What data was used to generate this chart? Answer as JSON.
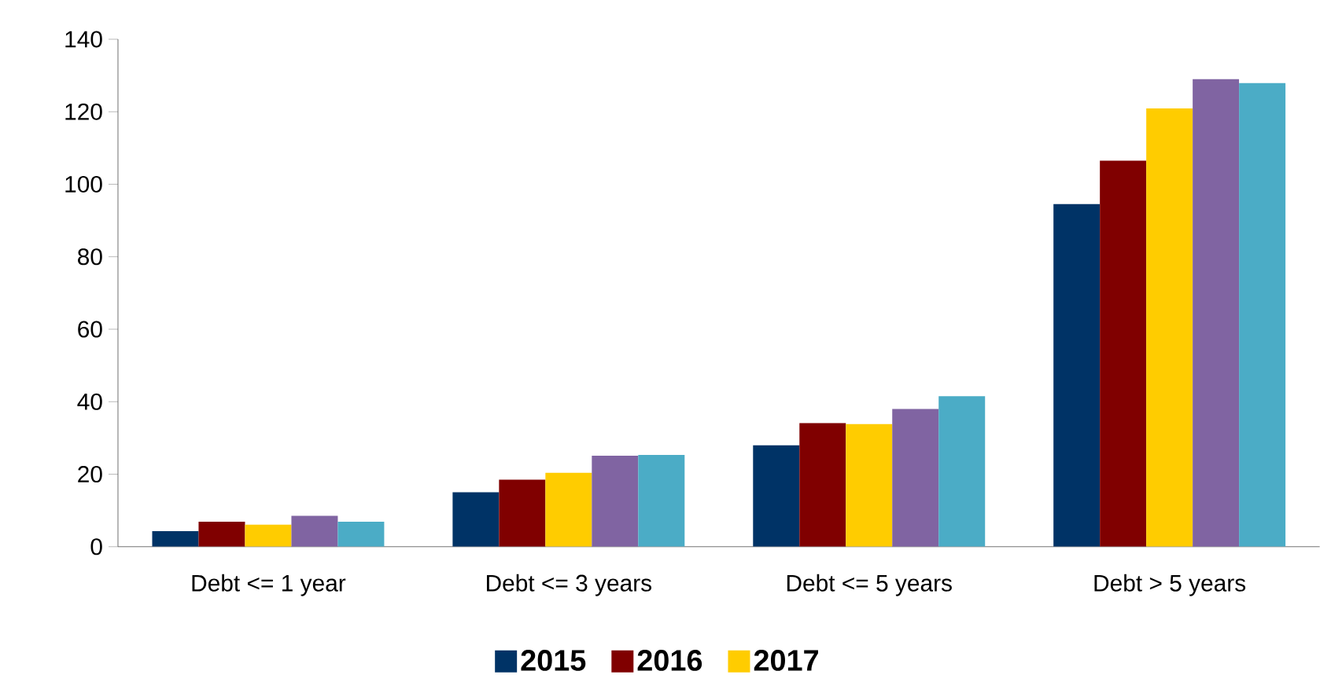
{
  "chart_data": {
    "type": "bar",
    "categories": [
      "Debt <= 1 year",
      "Debt <= 3 years",
      "Debt <= 5 years",
      "Debt > 5 years"
    ],
    "series": [
      {
        "name": "2015",
        "color": "#003366",
        "values": [
          4.3,
          15.0,
          28.0,
          94.5
        ]
      },
      {
        "name": "2016",
        "color": "#800000",
        "values": [
          6.9,
          18.5,
          34.1,
          106.5
        ]
      },
      {
        "name": "2017",
        "color": "#ffcc00",
        "values": [
          6.1,
          20.4,
          33.8,
          120.9
        ]
      },
      {
        "color": "#8064a2",
        "values": [
          8.5,
          25.1,
          38.0,
          129.0
        ]
      },
      {
        "color": "#4bacc6",
        "values": [
          6.9,
          25.3,
          41.5,
          127.9
        ]
      }
    ],
    "ylim": [
      0,
      140
    ],
    "yticks": [
      0,
      20,
      40,
      60,
      80,
      100,
      120,
      140
    ],
    "grid": false,
    "legend": "bottom"
  }
}
